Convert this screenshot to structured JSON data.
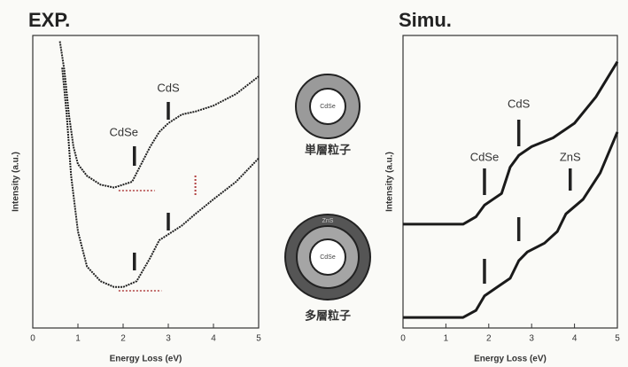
{
  "chart_data": [
    {
      "type": "line",
      "title": "EXP.",
      "xlabel": "Energy Loss (eV)",
      "ylabel": "Intensity (a.u.)",
      "xlim": [
        0,
        5
      ],
      "xticks": [
        0,
        1,
        2,
        3,
        4,
        5
      ],
      "ylim": [
        0,
        10
      ],
      "series": [
        {
          "color": "#222222",
          "x": [
            0.6,
            0.7,
            0.8,
            0.9,
            1.0,
            1.2,
            1.5,
            1.8,
            2.0,
            2.2,
            2.4,
            2.6,
            2.8,
            3.0,
            3.3,
            3.6,
            4.0,
            4.5,
            5.0
          ],
          "values": [
            9.8,
            8.8,
            7.3,
            6.2,
            5.6,
            5.2,
            4.9,
            4.8,
            4.9,
            5.0,
            5.6,
            6.2,
            6.7,
            7.0,
            7.3,
            7.4,
            7.6,
            8.0,
            8.6
          ]
        },
        {
          "color": "#222222",
          "x": [
            0.65,
            0.75,
            0.85,
            1.0,
            1.2,
            1.5,
            1.8,
            2.0,
            2.3,
            2.6,
            2.8,
            3.0,
            3.3,
            3.6,
            4.0,
            4.5,
            5.0
          ],
          "values": [
            8.9,
            7.3,
            5.2,
            3.3,
            2.1,
            1.6,
            1.4,
            1.4,
            1.6,
            2.4,
            3.0,
            3.2,
            3.5,
            3.9,
            4.4,
            5.0,
            5.8
          ]
        }
      ],
      "annotations": [
        {
          "text": "CdSe",
          "x": 2.25
        },
        {
          "text": "CdS",
          "x": 3.0
        }
      ]
    },
    {
      "type": "line",
      "title": "Simu.",
      "xlabel": "Energy Loss (eV)",
      "ylabel": "Intensity (a.u.)",
      "xlim": [
        0,
        5
      ],
      "xticks": [
        0,
        1,
        2,
        3,
        4,
        5
      ],
      "ylim": [
        0,
        10
      ],
      "series": [
        {
          "color": "#1a1a1a",
          "x": [
            0,
            1.4,
            1.7,
            1.9,
            2.1,
            2.3,
            2.5,
            2.7,
            3.0,
            3.5,
            4.0,
            4.5,
            5.0
          ],
          "values": [
            3.55,
            3.55,
            3.8,
            4.2,
            4.4,
            4.6,
            5.5,
            5.9,
            6.2,
            6.5,
            7.0,
            7.9,
            9.1
          ]
        },
        {
          "color": "#1a1a1a",
          "x": [
            0,
            1.4,
            1.7,
            1.9,
            2.2,
            2.5,
            2.7,
            2.9,
            3.3,
            3.6,
            3.8,
            4.2,
            4.6,
            5.0
          ],
          "values": [
            0.36,
            0.36,
            0.6,
            1.1,
            1.4,
            1.7,
            2.3,
            2.6,
            2.9,
            3.3,
            3.9,
            4.4,
            5.3,
            6.7
          ]
        }
      ],
      "annotations": [
        {
          "text": "CdSe",
          "x": 1.9
        },
        {
          "text": "CdS",
          "x": 2.7
        },
        {
          "text": "ZnS",
          "x": 3.9
        }
      ]
    }
  ],
  "particles": [
    {
      "core": "CdSe",
      "label": "単層粒子"
    },
    {
      "core": "CdSe",
      "outer": "ZnS",
      "label": "多層粒子"
    }
  ]
}
